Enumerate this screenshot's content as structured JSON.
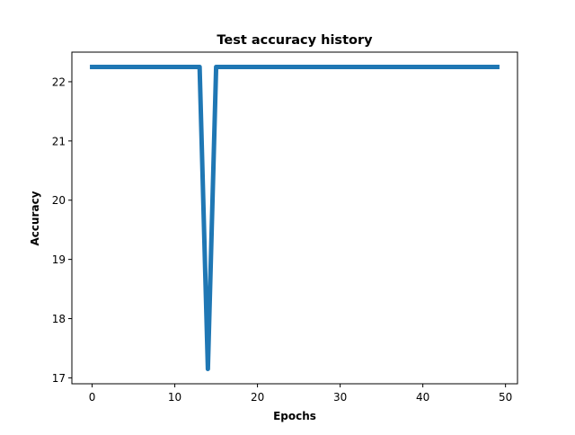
{
  "chart_data": {
    "type": "line",
    "title": "Test accuracy history",
    "xlabel": "Epochs",
    "ylabel": "Accuracy",
    "xlim": [
      -2.45,
      51.45
    ],
    "ylim": [
      16.9,
      22.5
    ],
    "xticks": [
      0,
      10,
      20,
      30,
      40,
      50
    ],
    "yticks": [
      17,
      18,
      19,
      20,
      21,
      22
    ],
    "grid": false,
    "legend": "none",
    "series_color": "#1f77b4",
    "x": [
      0,
      1,
      2,
      3,
      4,
      5,
      6,
      7,
      8,
      9,
      10,
      11,
      12,
      13,
      14,
      15,
      16,
      17,
      18,
      19,
      20,
      21,
      22,
      23,
      24,
      25,
      26,
      27,
      28,
      29,
      30,
      31,
      32,
      33,
      34,
      35,
      36,
      37,
      38,
      39,
      40,
      41,
      42,
      43,
      44,
      45,
      46,
      47,
      48,
      49
    ],
    "y": [
      22.25,
      22.25,
      22.25,
      22.25,
      22.25,
      22.25,
      22.25,
      22.25,
      22.25,
      22.25,
      22.25,
      22.25,
      22.25,
      22.25,
      17.15,
      22.25,
      22.25,
      22.25,
      22.25,
      22.25,
      22.25,
      22.25,
      22.25,
      22.25,
      22.25,
      22.25,
      22.25,
      22.25,
      22.25,
      22.25,
      22.25,
      22.25,
      22.25,
      22.25,
      22.25,
      22.25,
      22.25,
      22.25,
      22.25,
      22.25,
      22.25,
      22.25,
      22.25,
      22.25,
      22.25,
      22.25,
      22.25,
      22.25,
      22.25,
      22.25
    ]
  }
}
